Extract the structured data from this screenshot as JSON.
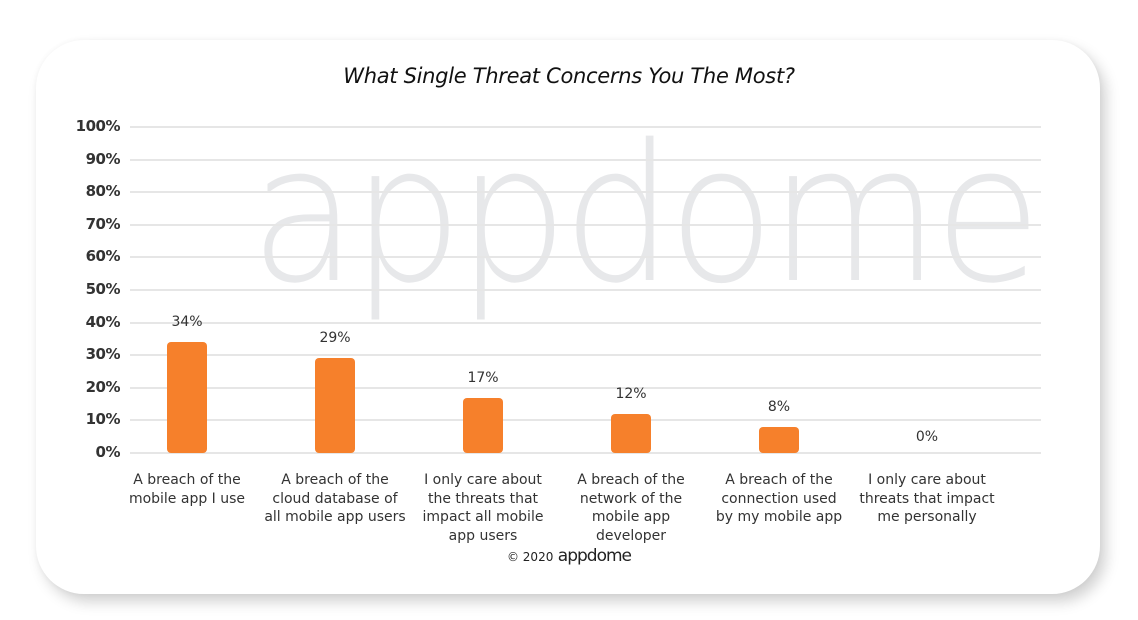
{
  "chart_data": {
    "type": "bar",
    "title": "What Single Threat Concerns You The Most?",
    "xlabel": "",
    "ylabel": "",
    "ylim": [
      0,
      100
    ],
    "y_tick_labels": [
      "100%",
      "90%",
      "80%",
      "70%",
      "60%",
      "50%",
      "40%",
      "30%",
      "20%",
      "10%",
      "0%"
    ],
    "grid": true,
    "legend": "none",
    "bar_color": "#f6802b",
    "categories": [
      "A breach of the mobile app I use",
      "A breach of the cloud database of all mobile app users",
      "I only care about the threats that impact all mobile app users",
      "A breach of the network of the mobile app developer",
      "A breach of the connection used by my mobile app",
      "I only care about threats that impact me personally"
    ],
    "values": [
      34,
      29,
      17,
      12,
      8,
      0
    ],
    "data_labels": [
      "34%",
      "29%",
      "17%",
      "12%",
      "8%",
      "0%"
    ]
  },
  "category_lines": [
    [
      "A breach of the",
      "mobile app I use"
    ],
    [
      "A breach of the",
      "cloud database of",
      "all mobile app users"
    ],
    [
      "I only care about",
      "the threats that",
      "impact all mobile",
      "app users"
    ],
    [
      "A breach of the",
      "network of the",
      "mobile app",
      "developer"
    ],
    [
      "A breach of the",
      "connection used",
      "by my mobile app"
    ],
    [
      "I only care about",
      "threats that impact",
      "me personally"
    ]
  ],
  "watermark": "appdome",
  "footer": {
    "copyright": "© 2020",
    "brand": "appdome"
  }
}
